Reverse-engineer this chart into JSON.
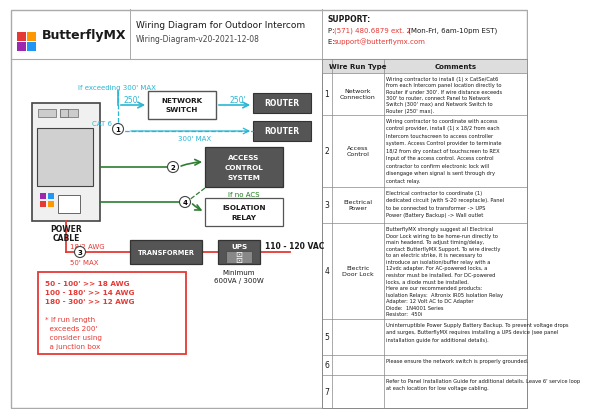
{
  "title": "Wiring Diagram for Outdoor Intercom",
  "subtitle": "Wiring-Diagram-v20-2021-12-08",
  "support_title": "SUPPORT:",
  "support_phone": "P: (571) 480.6879 ext. 2 (Mon-Fri, 6am-10pm EST)",
  "support_email_prefix": "E: ",
  "support_email": "support@butterflymx.com",
  "bg_color": "#ffffff",
  "cyan_color": "#29b6d4",
  "red_color": "#e53935",
  "green_color": "#2e7d32",
  "dark_gray": "#555555",
  "mid_gray": "#888888",
  "logo_colors": [
    [
      "#e53935",
      "#ff9800"
    ],
    [
      "#9c27b0",
      "#2196f3"
    ]
  ],
  "table_rows": [
    {
      "num": "1",
      "type": "Network Connection",
      "comment": "Wiring contractor to install (1) x CatSe/Cat6\nfrom each Intercom panel location directly to\nRouter if under 300'. If wire distance exceeds\n300' to router, connect Panel to Network\nSwitch (300' max) and Network Switch to\nRouter (250' max)."
    },
    {
      "num": "2",
      "type": "Access Control",
      "comment": "Wiring contractor to coordinate with access\ncontrol provider, install (1) x 18/2 from each\nIntercom touchscreen to access controller\nsystem. Access Control provider to terminate\n18/2 from dry contact of touchscreen to REX\nInput of the access control. Access control\ncontractor to confirm electronic lock will\ndisengage when signal is sent through dry\ncontact relay."
    },
    {
      "num": "3",
      "type": "Electrical Power",
      "comment": "Electrical contractor to coordinate (1)\ndedicated circuit (with S-20 receptacle). Panel\nto be connected to transformer -> UPS\nPower (Battery Backup) -> Wall outlet"
    },
    {
      "num": "4",
      "type": "Electric Door Lock",
      "comment": "ButterflyMX strongly suggest all Electrical\nDoor Lock wiring to be home-run directly to\nmain headend. To adjust timing/delay,\ncontact ButterflyMX Support. To wire directly\nto an electric strike, it is necessary to\nintroduce an isolation/buffer relay with a\n12vdc adapter. For AC-powered locks, a\nresistor must be installed. For DC-powered\nlocks, a diode must be installed.\nHere are our recommended products:\nIsolation Relays:  Altronix IR05 Isolation Relay\nAdapter: 12 Volt AC to DC Adapter\nDiode:  1N4001 Series\nResistor:  450i"
    },
    {
      "num": "5",
      "type": "",
      "comment": "Uninterruptible Power Supply Battery Backup. To prevent voltage drops\nand surges, ButterflyMX requires installing a UPS device (see panel\ninstallation guide for additional details)."
    },
    {
      "num": "6",
      "type": "",
      "comment": "Please ensure the network switch is properly grounded."
    },
    {
      "num": "7",
      "type": "",
      "comment": "Refer to Panel Installation Guide for additional details. Leave 6' service loop\nat each location for low voltage cabling."
    }
  ],
  "awg_lines": [
    "50 - 100' >> 18 AWG",
    "100 - 180' >> 14 AWG",
    "180 - 300' >> 12 AWG",
    "",
    "* If run length",
    "  exceeds 200'",
    "  consider using",
    "  a junction box"
  ]
}
